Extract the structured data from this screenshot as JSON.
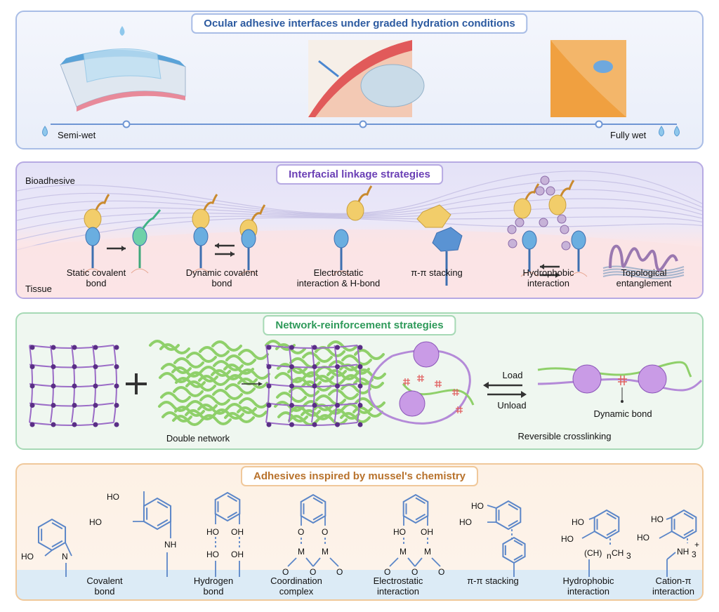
{
  "colors": {
    "panel1": "#2c5aa0",
    "panel2": "#6a3fb5",
    "panel3": "#2f9a5a",
    "panel4": "#b8722c",
    "bond": "#5b86c8"
  },
  "panel1": {
    "title": "Ocular adhesive interfaces under graded hydration conditions",
    "left_label": "Semi-wet",
    "right_label": "Fully wet"
  },
  "panel2": {
    "title": "Interfacial linkage strategies",
    "top_label": "Bioadhesive",
    "bottom_label": "Tissue",
    "items": [
      {
        "line1": "Static covalent",
        "line2": "bond"
      },
      {
        "line1": "Dynamic covalent",
        "line2": "bond"
      },
      {
        "line1": "Electrostatic",
        "line2": "interaction & H-bond"
      },
      {
        "line1": "π-π stacking",
        "line2": ""
      },
      {
        "line1": "Hydrophobic",
        "line2": "interaction"
      },
      {
        "line1": "Topological",
        "line2": "entanglement"
      }
    ]
  },
  "panel3": {
    "title": "Network-reinforcement strategies",
    "double_network": "Double network",
    "load": "Load",
    "unload": "Unload",
    "dynamic_bond": "Dynamic bond",
    "reversible": "Reversible crosslinking"
  },
  "panel4": {
    "title": "Adhesives inspired by mussel's chemistry",
    "items": [
      {
        "line1": "Covalent",
        "line2": "bond"
      },
      {
        "line1": "Hydrogen",
        "line2": "bond"
      },
      {
        "line1": "Coordination",
        "line2": "complex"
      },
      {
        "line1": "Electrostatic",
        "line2": "interaction"
      },
      {
        "line1": "π-π stacking",
        "line2": ""
      },
      {
        "line1": "Hydrophobic",
        "line2": "interaction"
      },
      {
        "line1": "Cation-π",
        "line2": "interaction"
      }
    ],
    "atoms": {
      "ho": "HO",
      "oh": "OH",
      "n": "N",
      "nh": "NH",
      "o": "O",
      "m": "M",
      "ch": "(CH)",
      "sub_n": "n",
      "ch3": "CH",
      "sub_3": "3",
      "nh3": "NH",
      "sub3": "3",
      "plus": "+"
    }
  }
}
